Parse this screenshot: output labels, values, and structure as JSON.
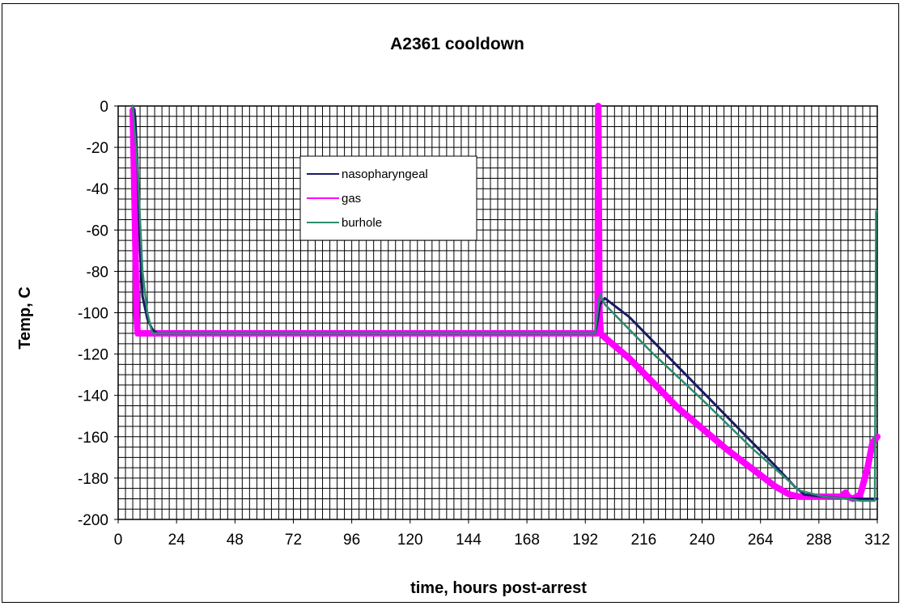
{
  "chart_data": {
    "type": "line",
    "title": "A2361 cooldown",
    "xlabel": "time, hours post-arrest",
    "ylabel": "Temp, C",
    "xlim": [
      0,
      312
    ],
    "ylim": [
      -200,
      0
    ],
    "x_ticks": [
      "0",
      "24",
      "48",
      "72",
      "96",
      "120",
      "144",
      "168",
      "192",
      "216",
      "240",
      "264",
      "288",
      "312"
    ],
    "y_ticks": [
      "0",
      "-20",
      "-40",
      "-60",
      "-80",
      "-100",
      "-120",
      "-140",
      "-160",
      "-180",
      "-200"
    ],
    "grid": true,
    "legend_position": "top-center",
    "series": [
      {
        "name": "nasopharyngeal",
        "color": "#1a1a66",
        "x": [
          6,
          7,
          8,
          9,
          10,
          12,
          14,
          16,
          40,
          80,
          120,
          160,
          196,
          197,
          198,
          200,
          210,
          230,
          250,
          270,
          278,
          282,
          290,
          300,
          310,
          312
        ],
        "y": [
          0,
          -5,
          -30,
          -70,
          -92,
          -103,
          -108,
          -110,
          -110,
          -110,
          -110,
          -110,
          -110,
          -104,
          -96,
          -93,
          -102,
          -126,
          -150,
          -174,
          -184,
          -188,
          -189,
          -190,
          -190,
          -190
        ]
      },
      {
        "name": "gas",
        "color": "#ff00ff",
        "x": [
          6,
          7,
          7.5,
          8,
          20,
          60,
          100,
          140,
          180,
          196,
          197,
          197.3,
          197.8,
          198.3,
          200,
          210,
          230,
          250,
          270,
          276,
          280,
          290,
          297,
          299,
          300,
          302,
          305,
          308,
          310,
          312
        ],
        "y": [
          -2,
          -60,
          -100,
          -110,
          -110,
          -110,
          -110,
          -110,
          -110,
          -110,
          -110,
          0,
          -100,
          -110,
          -112,
          -122,
          -146,
          -166,
          -184,
          -188,
          -189,
          -189,
          -189,
          -187,
          -189,
          -190,
          -188,
          -175,
          -163,
          -160
        ]
      },
      {
        "name": "burhole",
        "color": "#2e8b6f",
        "x": [
          6,
          8,
          10,
          12,
          14,
          40,
          80,
          120,
          160,
          196,
          197,
          198,
          200,
          220,
          240,
          260,
          280,
          290,
          300,
          305,
          310,
          311,
          311.5,
          312
        ],
        "y": [
          0,
          -30,
          -80,
          -100,
          -110,
          -110,
          -110,
          -110,
          -110,
          -110,
          -100,
          -91,
          -96,
          -120,
          -142,
          -165,
          -186,
          -189,
          -190,
          -191,
          -191,
          -191,
          -51,
          -51
        ]
      }
    ]
  }
}
